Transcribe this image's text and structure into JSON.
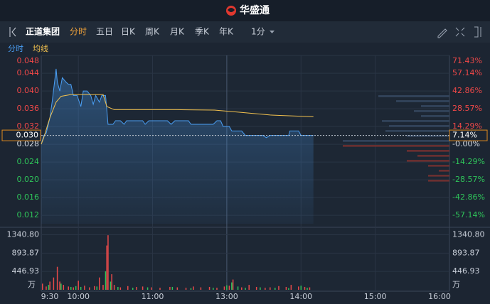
{
  "header": {
    "logo": "华盛通"
  },
  "toolbar": {
    "stock": "正道集团",
    "tabs": [
      "分时",
      "五日",
      "日K",
      "周K",
      "月K",
      "季K",
      "年K"
    ],
    "interval": "1分"
  },
  "subbar": {
    "items": [
      "分时",
      "均线"
    ]
  },
  "chart_data": [
    {
      "type": "line",
      "ylim": [
        0.0101,
        0.0477
      ],
      "yticks": [
        0.048,
        0.044,
        {
          "value": 0.04,
          "label": "0.040"
        },
        0.036,
        0.032,
        0.028,
        0.024,
        {
          "value": 0.02,
          "label": "0.020"
        },
        0.016,
        0.012
      ],
      "y2lim": [
        -63.93,
        70.36
      ],
      "y2ticks": [
        {
          "value": 71.43,
          "label": "71.43%"
        },
        {
          "value": 57.14,
          "label": "57.14%"
        },
        {
          "value": 42.86,
          "label": "42.86%"
        },
        {
          "value": 28.57,
          "label": "28.57%"
        },
        {
          "value": 14.29,
          "label": "14.29%"
        },
        {
          "value": 0,
          "label": "-0.00%"
        },
        {
          "value": -14.29,
          "label": "-14.29%"
        },
        {
          "value": -28.57,
          "label": "-28.57%"
        },
        {
          "value": -42.86,
          "label": "-42.86%"
        },
        {
          "value": -57.14,
          "label": "-57.14%"
        }
      ],
      "xlim": [
        0,
        330
      ],
      "xticks": [
        {
          "value": 0,
          "label": "9:30"
        },
        {
          "value": 30,
          "label": "10:00"
        },
        {
          "value": 90,
          "label": "11:00"
        },
        {
          "value": 150,
          "label": "13:00"
        },
        {
          "value": 210,
          "label": "14:00"
        },
        {
          "value": 270,
          "label": "15:00"
        },
        {
          "value": 330,
          "label": "16:00"
        }
      ],
      "grid": true,
      "colors": {
        "up": "#f04848",
        "down": "#2fc45a",
        "flat": "#d8dde5"
      },
      "crosshair": {
        "value": 0.03,
        "label": "0.030",
        "pct": {
          "value": 7.14,
          "label": "7.14%"
        }
      },
      "series": [
        {
          "color": "#4a9ff5",
          "x": [
            0,
            2,
            4,
            7,
            9,
            12,
            13,
            15,
            17,
            20,
            22,
            24,
            26,
            29,
            32,
            34,
            37,
            40,
            42,
            44,
            47,
            49,
            52,
            54,
            58,
            60,
            64,
            67,
            69,
            82,
            84,
            87,
            102,
            105,
            108,
            119,
            121,
            139,
            142,
            145,
            147,
            152,
            154,
            162,
            165,
            179,
            182,
            185,
            200,
            201,
            208,
            210,
            220
          ],
          "values": [
            0.028,
            0.03,
            0.0305,
            0.034,
            0.038,
            0.045,
            0.042,
            0.04,
            0.043,
            0.042,
            0.0415,
            0.0415,
            0.039,
            0.039,
            0.0365,
            0.04,
            0.04,
            0.039,
            0.037,
            0.039,
            0.0375,
            0.039,
            0.039,
            0.0325,
            0.0325,
            0.0333,
            0.0333,
            0.0325,
            0.0333,
            0.0333,
            0.0325,
            0.0333,
            0.0333,
            0.0325,
            0.0333,
            0.0333,
            0.0325,
            0.0325,
            0.0333,
            0.0333,
            0.032,
            0.032,
            0.031,
            0.031,
            0.03,
            0.03,
            0.0295,
            0.03,
            0.03,
            0.031,
            0.031,
            0.03,
            0.03
          ]
        },
        {
          "color": "#f2c14e",
          "x": [
            0,
            2,
            7,
            12,
            16,
            24,
            50,
            53,
            59,
            110,
            140,
            161,
            185,
            220
          ],
          "values": [
            0.028,
            0.0295,
            0.034,
            0.0375,
            0.0388,
            0.0392,
            0.0392,
            0.0365,
            0.0358,
            0.0358,
            0.0357,
            0.0352,
            0.0346,
            0.0342
          ]
        }
      ],
      "depth": {
        "ask_color": "#34465e",
        "bid_color": "#6e3030",
        "asks": [
          100,
          75,
          40,
          50,
          40,
          95,
          85,
          90,
          60,
          150
        ],
        "bids": [
          150,
          60,
          45,
          60,
          30,
          15,
          30,
          30
        ]
      }
    },
    {
      "type": "bar",
      "ylim": [
        0,
        1437
      ],
      "yticks": [
        {
          "value": 1340.8,
          "label": "1340.80"
        },
        893.87,
        446.93
      ],
      "y_unit": "万",
      "series": [
        {
          "color": "#e84a4a",
          "x": [
            1,
            4,
            7,
            10,
            13,
            15,
            18,
            22,
            26,
            30,
            35,
            39,
            43,
            47,
            50,
            53,
            54,
            57,
            59,
            64,
            70,
            77,
            82,
            89,
            96,
            104,
            110,
            117,
            123,
            129,
            136,
            142,
            148,
            152,
            155,
            162,
            168,
            174,
            181,
            185,
            192,
            198,
            202,
            208,
            213,
            217
          ],
          "values": [
            150,
            80,
            200,
            300,
            560,
            200,
            120,
            80,
            60,
            220,
            100,
            60,
            90,
            300,
            120,
            1080,
            1330,
            380,
            120,
            60,
            90,
            70,
            80,
            60,
            50,
            70,
            60,
            50,
            80,
            60,
            70,
            50,
            80,
            100,
            250,
            60,
            120,
            70,
            50,
            60,
            90,
            70,
            120,
            80,
            70,
            60
          ]
        },
        {
          "color": "#2fc45a",
          "x": [
            6,
            16,
            24,
            28,
            32,
            45,
            52,
            56,
            62,
            74,
            86,
            106,
            121,
            139,
            150,
            154,
            159,
            165,
            177,
            189,
            200,
            210,
            215
          ],
          "values": [
            120,
            150,
            70,
            90,
            70,
            80,
            450,
            200,
            70,
            50,
            60,
            70,
            40,
            50,
            110,
            180,
            80,
            50,
            60,
            50,
            40,
            100,
            50
          ]
        }
      ]
    }
  ]
}
